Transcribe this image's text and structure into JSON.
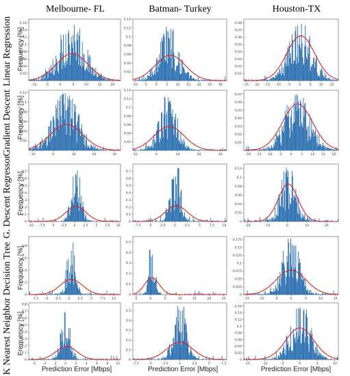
{
  "figure": {
    "col_titles": [
      "Melbourne- FL",
      "Batman- Turkey",
      "Houston-TX"
    ],
    "row_titles": [
      "Linear Regression",
      "Gradient Descent",
      "G. Descent Regressor",
      "Decision Tree",
      "K Nearest Neighbor"
    ],
    "ylabel": "Frequency [%]",
    "xlabel": "Prediction Error [Mbps]",
    "bar_color": "#2b6fb0",
    "curve_color": "#e02020"
  },
  "chart_data": [
    {
      "type": "bar",
      "title": "",
      "row": "Linear Regression",
      "col": "Melbourne- FL",
      "xlabel": "",
      "ylabel": "Frequency [%]",
      "xlim": [
        -12,
        23
      ],
      "ylim": [
        0,
        0.17
      ],
      "xticks": [
        -10,
        -5,
        0,
        5,
        10,
        15,
        20
      ],
      "yticks": [
        0.02,
        0.04,
        0.06,
        0.08,
        0.1,
        0.12,
        0.14,
        0.16
      ],
      "histogram": {
        "mean": 4.5,
        "std": 6.0,
        "peak": 0.16
      },
      "fit_curve": {
        "mean": 4.5,
        "std": 6.0,
        "peak": 0.075
      }
    },
    {
      "type": "bar",
      "title": "",
      "row": "Linear Regression",
      "col": "Batman- Turkey",
      "xlabel": "",
      "ylabel": "Frequency [%]",
      "xlim": [
        -11,
        33
      ],
      "ylim": [
        0,
        0.14
      ],
      "xticks": [
        -10,
        -5,
        0,
        5,
        10,
        15,
        20,
        25,
        30
      ],
      "yticks": [
        0.02,
        0.04,
        0.06,
        0.08,
        0.1,
        0.12,
        0.14
      ],
      "histogram": {
        "mean": 6.0,
        "std": 5.5,
        "peak": 0.13
      },
      "fit_curve": {
        "mean": 6.5,
        "std": 7.0,
        "peak": 0.058
      }
    },
    {
      "type": "bar",
      "title": "",
      "row": "Linear Regression",
      "col": "Houston-TX",
      "xlabel": "",
      "ylabel": "Frequency [%]",
      "xlim": [
        -26,
        18
      ],
      "ylim": [
        0,
        0.085
      ],
      "xticks": [
        -25,
        -20,
        -15,
        -10,
        -5,
        0,
        5,
        10,
        15
      ],
      "yticks": [
        0.01,
        0.02,
        0.03,
        0.04,
        0.05,
        0.06,
        0.07,
        0.08
      ],
      "histogram": {
        "mean": 0.5,
        "std": 6.5,
        "peak": 0.08
      },
      "fit_curve": {
        "mean": 0.5,
        "std": 6.5,
        "peak": 0.062
      }
    },
    {
      "type": "bar",
      "title": "",
      "row": "Gradient Descent",
      "col": "Melbourne- FL",
      "xlabel": "",
      "ylabel": "Frequency [%]",
      "xlim": [
        -12,
        33
      ],
      "ylim": [
        0,
        0.125
      ],
      "xticks": [
        -10,
        0,
        10,
        20,
        30
      ],
      "yticks": [
        0.02,
        0.04,
        0.06,
        0.08,
        0.1,
        0.12
      ],
      "histogram": {
        "mean": 6.0,
        "std": 7.5,
        "peak": 0.12
      },
      "fit_curve": {
        "mean": 6.5,
        "std": 8.0,
        "peak": 0.054
      }
    },
    {
      "type": "bar",
      "title": "",
      "row": "Gradient Descent",
      "col": "Batman- Turkey",
      "xlabel": "",
      "ylabel": "Frequency [%]",
      "xlim": [
        -11,
        33
      ],
      "ylim": [
        0,
        0.14
      ],
      "xticks": [
        -10,
        0,
        10,
        20,
        30
      ],
      "yticks": [
        0.02,
        0.04,
        0.06,
        0.08,
        0.1,
        0.12,
        0.14
      ],
      "histogram": {
        "mean": 5.5,
        "std": 5.0,
        "peak": 0.125
      },
      "fit_curve": {
        "mean": 6.0,
        "std": 7.0,
        "peak": 0.056
      }
    },
    {
      "type": "bar",
      "title": "",
      "row": "Gradient Descent",
      "col": "Houston-TX",
      "xlabel": "",
      "ylabel": "Frequency [%]",
      "xlim": [
        -22,
        22
      ],
      "ylim": [
        0,
        0.075
      ],
      "xticks": [
        -20,
        -15,
        -10,
        -5,
        0,
        5,
        10,
        15,
        20
      ],
      "yticks": [
        0.01,
        0.02,
        0.03,
        0.04,
        0.05,
        0.06,
        0.07
      ],
      "histogram": {
        "mean": 3.0,
        "std": 7.0,
        "peak": 0.07
      },
      "fit_curve": {
        "mean": 3.0,
        "std": 7.0,
        "peak": 0.058
      }
    },
    {
      "type": "bar",
      "title": "",
      "row": "G. Descent Regressor",
      "col": "Melbourne- FL",
      "xlabel": "",
      "ylabel": "Frequency [%]",
      "xlim": [
        -10.5,
        10.5
      ],
      "ylim": [
        0,
        0.8
      ],
      "xticks": [
        -10.0,
        -7.5,
        -5.0,
        -2.5,
        0.0,
        2.5,
        5.0,
        7.5,
        10.0
      ],
      "yticks": [
        0.0,
        0.1,
        0.2,
        0.3,
        0.4,
        0.5,
        0.6,
        0.7
      ],
      "histogram": {
        "mean": 0.3,
        "std": 1.3,
        "peak": 0.74
      },
      "fit_curve": {
        "mean": 0.3,
        "std": 2.3,
        "peak": 0.21
      }
    },
    {
      "type": "bar",
      "title": "",
      "row": "G. Descent Regressor",
      "col": "Batman- Turkey",
      "xlabel": "",
      "ylabel": "Frequency [%]",
      "xlim": [
        -8.5,
        10.5
      ],
      "ylim": [
        0,
        0.8
      ],
      "xticks": [
        -7.5,
        -5.0,
        -2.5,
        0.0,
        2.5,
        5.0,
        7.5,
        10.0
      ],
      "yticks": [
        0.0,
        0.1,
        0.2,
        0.3,
        0.4,
        0.5,
        0.6,
        0.7
      ],
      "histogram": {
        "mean": 0.2,
        "std": 1.2,
        "peak": 0.75
      },
      "fit_curve": {
        "mean": 0.3,
        "std": 2.2,
        "peak": 0.22
      }
    },
    {
      "type": "bar",
      "title": "",
      "row": "G. Descent Regressor",
      "col": "Houston-TX",
      "xlabel": "",
      "ylabel": "Frequency [%]",
      "xlim": [
        -22,
        26
      ],
      "ylim": [
        0,
        0.13
      ],
      "xticks": [
        -20,
        -10,
        0,
        10,
        20
      ],
      "yticks": [
        0.0,
        0.02,
        0.04,
        0.06,
        0.08,
        0.1,
        0.12
      ],
      "histogram": {
        "mean": 0.5,
        "std": 4.5,
        "peak": 0.125
      },
      "fit_curve": {
        "mean": 0.5,
        "std": 5.0,
        "peak": 0.085
      }
    },
    {
      "type": "bar",
      "title": "",
      "row": "Decision Tree",
      "col": "Melbourne- FL",
      "xlabel": "",
      "ylabel": "Frequency [%]",
      "xlim": [
        -9,
        11.5
      ],
      "ylim": [
        0,
        0.95
      ],
      "xticks": [
        -7.5,
        -5.0,
        -2.5,
        0.0,
        2.5,
        5.0,
        7.5,
        10.0
      ],
      "yticks": [
        0.0,
        0.2,
        0.4,
        0.6,
        0.8
      ],
      "histogram": {
        "mean": 0.5,
        "std": 1.1,
        "peak": 0.9
      },
      "fit_curve": {
        "mean": 0.5,
        "std": 2.5,
        "peak": 0.25
      }
    },
    {
      "type": "bar",
      "title": "",
      "row": "Decision Tree",
      "col": "Batman- Turkey",
      "xlabel": "",
      "ylabel": "Frequency [%]",
      "xlim": [
        -6,
        26
      ],
      "ylim": [
        0,
        0.55
      ],
      "xticks": [
        -5,
        0,
        5,
        10,
        15,
        20,
        25
      ],
      "yticks": [
        0.0,
        0.1,
        0.2,
        0.3,
        0.4,
        0.5
      ],
      "histogram": {
        "mean": 0.5,
        "std": 1.2,
        "peak": 0.52
      },
      "fit_curve": {
        "mean": 0.5,
        "std": 2.5,
        "peak": 0.16
      }
    },
    {
      "type": "bar",
      "title": "",
      "row": "Decision Tree",
      "col": "Houston-TX",
      "xlabel": "",
      "ylabel": "Frequency [%]",
      "xlim": [
        -16,
        16
      ],
      "ylim": [
        0,
        0.185
      ],
      "xticks": [
        -15,
        -10,
        -5,
        0,
        5,
        10,
        15
      ],
      "yticks": [
        0.0,
        0.025,
        0.05,
        0.075,
        0.1,
        0.125,
        0.15,
        0.175
      ],
      "histogram": {
        "mean": 0.0,
        "std": 3.5,
        "peak": 0.18
      },
      "fit_curve": {
        "mean": 0.0,
        "std": 5.0,
        "peak": 0.078
      }
    },
    {
      "type": "bar",
      "title": "",
      "row": "K Nearest Neighbor",
      "col": "Melbourne- FL",
      "xlabel": "Prediction Error [Mbps]",
      "ylabel": "Frequency [%]",
      "xlim": [
        -7,
        10.5
      ],
      "ylim": [
        0,
        0.82
      ],
      "xticks": [
        -6,
        -4,
        -2,
        0,
        2,
        4,
        6,
        8,
        10
      ],
      "yticks": [
        0.0,
        0.1,
        0.2,
        0.3,
        0.4,
        0.5,
        0.6,
        0.7,
        0.8
      ],
      "histogram": {
        "mean": 0.0,
        "std": 1.0,
        "peak": 0.76
      },
      "fit_curve": {
        "mean": 0.2,
        "std": 2.0,
        "peak": 0.19
      }
    },
    {
      "type": "bar",
      "title": "",
      "row": "K Nearest Neighbor",
      "col": "Batman- Turkey",
      "xlabel": "Prediction Error [Mbps]",
      "ylabel": "Frequency [%]",
      "xlim": [
        -8,
        8
      ],
      "ylim": [
        0,
        0.58
      ],
      "xticks": [
        -7.5,
        -5.0,
        -2.5,
        0.0,
        2.5,
        5.0,
        7.5
      ],
      "yticks": [
        0.0,
        0.1,
        0.2,
        0.3,
        0.4,
        0.5
      ],
      "histogram": {
        "mean": 0.0,
        "std": 1.3,
        "peak": 0.55
      },
      "fit_curve": {
        "mean": 0.0,
        "std": 2.2,
        "peak": 0.18
      }
    },
    {
      "type": "bar",
      "title": "",
      "row": "K Nearest Neighbor",
      "col": "Houston-TX",
      "xlabel": "Prediction Error [Mbps]",
      "ylabel": "Frequency [%]",
      "xlim": [
        -16,
        11
      ],
      "ylim": [
        0,
        0.17
      ],
      "xticks": [
        -15,
        -10,
        -5,
        0,
        5,
        10
      ],
      "yticks": [
        0.0,
        0.02,
        0.04,
        0.06,
        0.08,
        0.1,
        0.12,
        0.14,
        0.16
      ],
      "histogram": {
        "mean": 0.0,
        "std": 3.5,
        "peak": 0.16
      },
      "fit_curve": {
        "mean": 0.0,
        "std": 4.0,
        "peak": 0.095
      }
    }
  ]
}
